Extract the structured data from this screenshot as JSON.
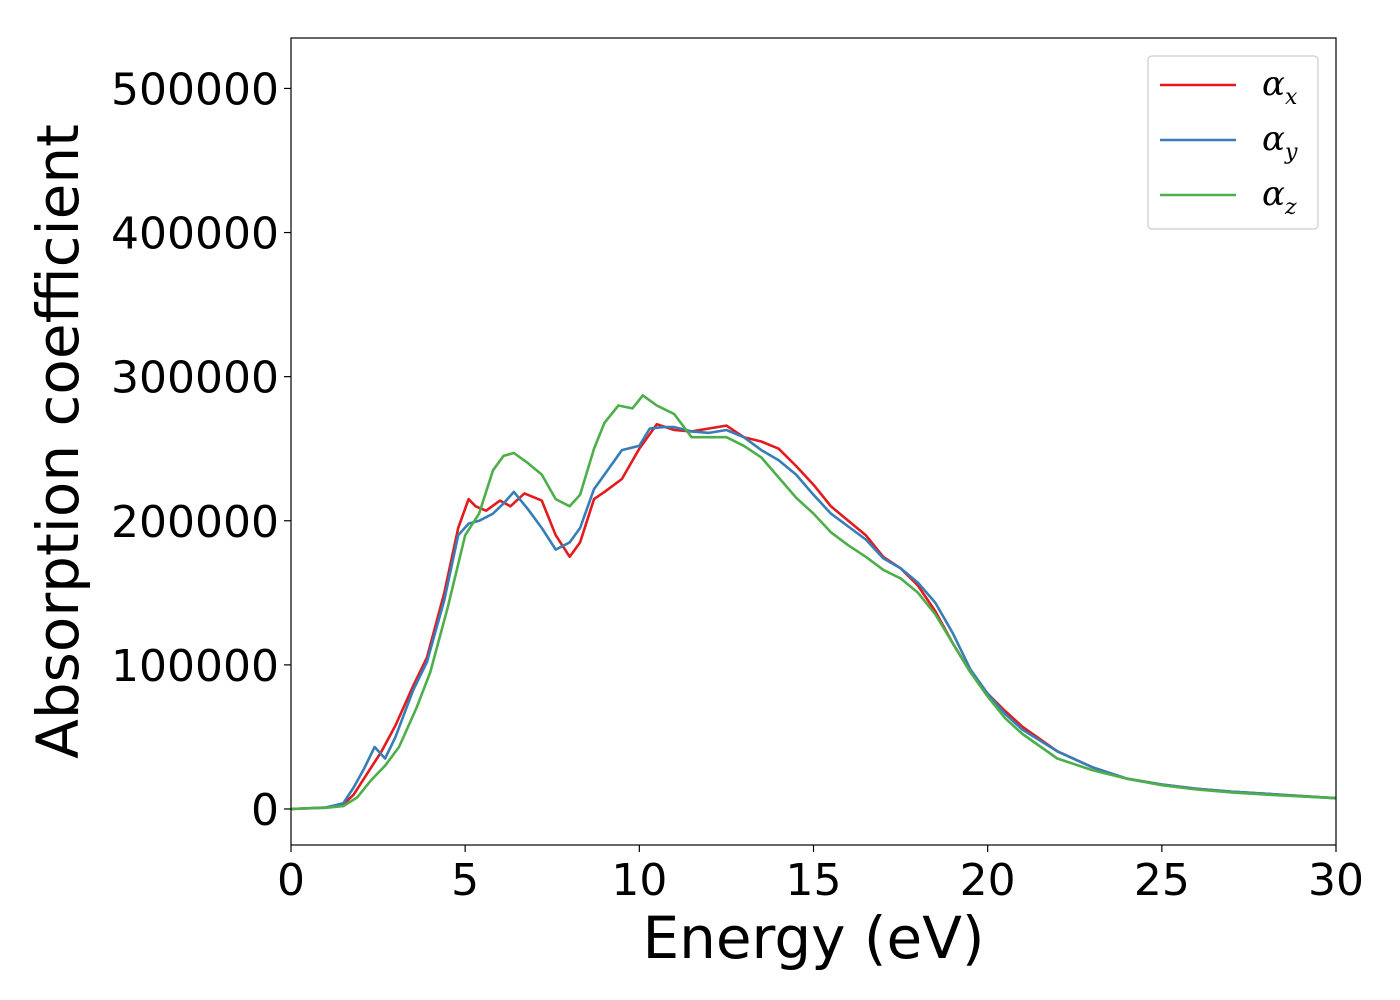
{
  "chart_data": {
    "type": "line",
    "title": "",
    "xlabel": "Energy (eV)",
    "ylabel": "Absorption coefficient",
    "xlim": [
      0,
      30
    ],
    "ylim": [
      -25000,
      535000
    ],
    "xticks": [
      0,
      5,
      10,
      15,
      20,
      25,
      30
    ],
    "yticks": [
      0,
      100000,
      200000,
      300000,
      400000,
      500000
    ],
    "grid": false,
    "legend_position": "top-right",
    "series": [
      {
        "name": "α_x",
        "legend_symbol": "α",
        "legend_subscript": "x",
        "color": "#e41a1c",
        "x": [
          0,
          1,
          1.5,
          1.8,
          2.2,
          2.6,
          3.0,
          3.5,
          3.9,
          4.4,
          4.8,
          5.1,
          5.3,
          5.6,
          6.0,
          6.3,
          6.7,
          7.2,
          7.6,
          8.0,
          8.3,
          8.7,
          9.0,
          9.5,
          10.0,
          10.5,
          11.0,
          11.5,
          12.0,
          12.5,
          13.0,
          13.5,
          14.0,
          14.5,
          15.0,
          15.5,
          16.0,
          16.5,
          17.0,
          17.5,
          18.0,
          18.5,
          19.0,
          19.5,
          20.0,
          20.5,
          21.0,
          22.0,
          23.0,
          24.0,
          25.0,
          26.0,
          27.0,
          28.0,
          29.0,
          30.0
        ],
        "y": [
          0,
          1000,
          3000,
          10000,
          25000,
          40000,
          58000,
          85000,
          105000,
          150000,
          195000,
          215000,
          210000,
          207000,
          214000,
          210000,
          219000,
          214000,
          190000,
          175000,
          185000,
          215000,
          220000,
          229000,
          250000,
          267000,
          263000,
          262000,
          264000,
          266000,
          258000,
          255000,
          250000,
          238000,
          225000,
          210000,
          200000,
          190000,
          175000,
          167000,
          155000,
          137000,
          115000,
          95000,
          80000,
          68000,
          57000,
          40000,
          29000,
          21000,
          17000,
          14000,
          12000,
          10500,
          9000,
          7500
        ]
      },
      {
        "name": "α_y",
        "legend_symbol": "α",
        "legend_subscript": "y",
        "color": "#377eb8",
        "x": [
          0,
          1,
          1.5,
          1.8,
          2.1,
          2.4,
          2.7,
          3.0,
          3.5,
          3.9,
          4.4,
          4.8,
          5.1,
          5.4,
          5.8,
          6.1,
          6.4,
          6.8,
          7.2,
          7.6,
          8.0,
          8.3,
          8.7,
          9.0,
          9.5,
          10.0,
          10.3,
          10.7,
          11.0,
          11.5,
          12.0,
          12.5,
          13.0,
          13.5,
          14.0,
          14.5,
          15.0,
          15.5,
          16.0,
          16.5,
          17.0,
          17.5,
          18.0,
          18.5,
          19.0,
          19.5,
          20.0,
          20.5,
          21.0,
          22.0,
          23.0,
          24.0,
          25.0,
          26.0,
          27.0,
          28.0,
          29.0,
          30.0
        ],
        "y": [
          0,
          1000,
          4000,
          15000,
          28000,
          43000,
          35000,
          50000,
          82000,
          102000,
          145000,
          190000,
          198000,
          200000,
          205000,
          212000,
          220000,
          208000,
          195000,
          180000,
          185000,
          195000,
          222000,
          232000,
          249000,
          252000,
          264000,
          265000,
          265000,
          262000,
          261000,
          263000,
          258000,
          249000,
          242000,
          232000,
          218000,
          205000,
          196000,
          187000,
          174000,
          167000,
          157000,
          143000,
          122000,
          97000,
          80000,
          66000,
          55000,
          40000,
          29000,
          21000,
          17000,
          14000,
          12000,
          10500,
          9000,
          7500
        ]
      },
      {
        "name": "α_z",
        "legend_symbol": "α",
        "legend_subscript": "z",
        "color": "#4daf4a",
        "x": [
          0,
          1,
          1.5,
          1.9,
          2.3,
          2.7,
          3.1,
          3.6,
          4.0,
          4.5,
          5.0,
          5.4,
          5.8,
          6.1,
          6.4,
          6.8,
          7.2,
          7.6,
          8.0,
          8.3,
          8.7,
          9.0,
          9.4,
          9.8,
          10.1,
          10.5,
          11.0,
          11.5,
          12.0,
          12.5,
          13.0,
          13.5,
          14.0,
          14.5,
          15.0,
          15.5,
          16.0,
          16.5,
          17.0,
          17.5,
          18.0,
          18.5,
          19.0,
          19.5,
          20.0,
          20.5,
          21.0,
          22.0,
          23.0,
          24.0,
          25.0,
          26.0,
          27.0,
          28.0,
          29.0,
          30.0
        ],
        "y": [
          0,
          800,
          2000,
          8000,
          20000,
          30000,
          43000,
          70000,
          95000,
          140000,
          190000,
          205000,
          235000,
          245000,
          247000,
          240000,
          232000,
          215000,
          210000,
          218000,
          250000,
          268000,
          280000,
          278000,
          287000,
          280000,
          274000,
          258000,
          258000,
          258000,
          252000,
          244000,
          230000,
          216000,
          205000,
          192000,
          183000,
          175000,
          166000,
          160000,
          150000,
          135000,
          115000,
          95000,
          78000,
          63000,
          52000,
          35000,
          27000,
          21000,
          16500,
          13500,
          11500,
          10000,
          8700,
          7500
        ]
      }
    ]
  }
}
